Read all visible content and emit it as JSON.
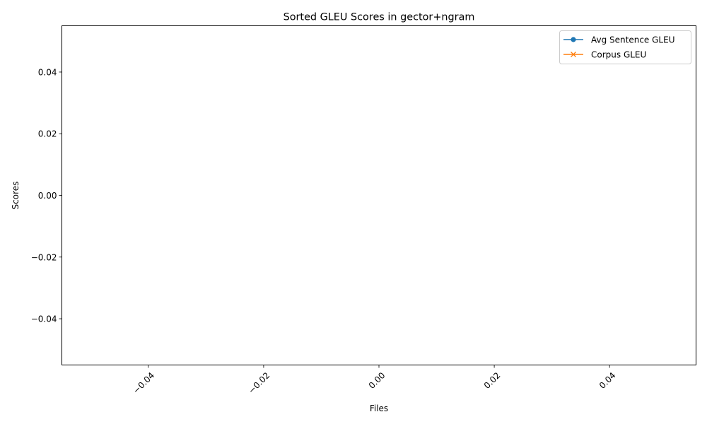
{
  "chart_data": {
    "type": "line",
    "title": "Sorted GLEU Scores in gector+ngram",
    "xlabel": "Files",
    "ylabel": "Scores",
    "xlim": [
      -0.055,
      0.055
    ],
    "ylim": [
      -0.055,
      0.055
    ],
    "x_ticks": [
      "−0.04",
      "−0.02",
      "0.00",
      "0.02",
      "0.04"
    ],
    "x_tick_values": [
      -0.04,
      -0.02,
      0.0,
      0.02,
      0.04
    ],
    "y_ticks": [
      "−0.04",
      "−0.02",
      "0.00",
      "0.02",
      "0.04"
    ],
    "y_tick_values": [
      -0.04,
      -0.02,
      0.0,
      0.02,
      0.04
    ],
    "grid": false,
    "legend_position": "top-right",
    "categories": [],
    "series": [
      {
        "name": "Avg Sentence GLEU",
        "values": [],
        "color": "#1f77b4",
        "marker": "circle"
      },
      {
        "name": "Corpus GLEU",
        "values": [],
        "color": "#ff7f0e",
        "marker": "x"
      }
    ]
  }
}
